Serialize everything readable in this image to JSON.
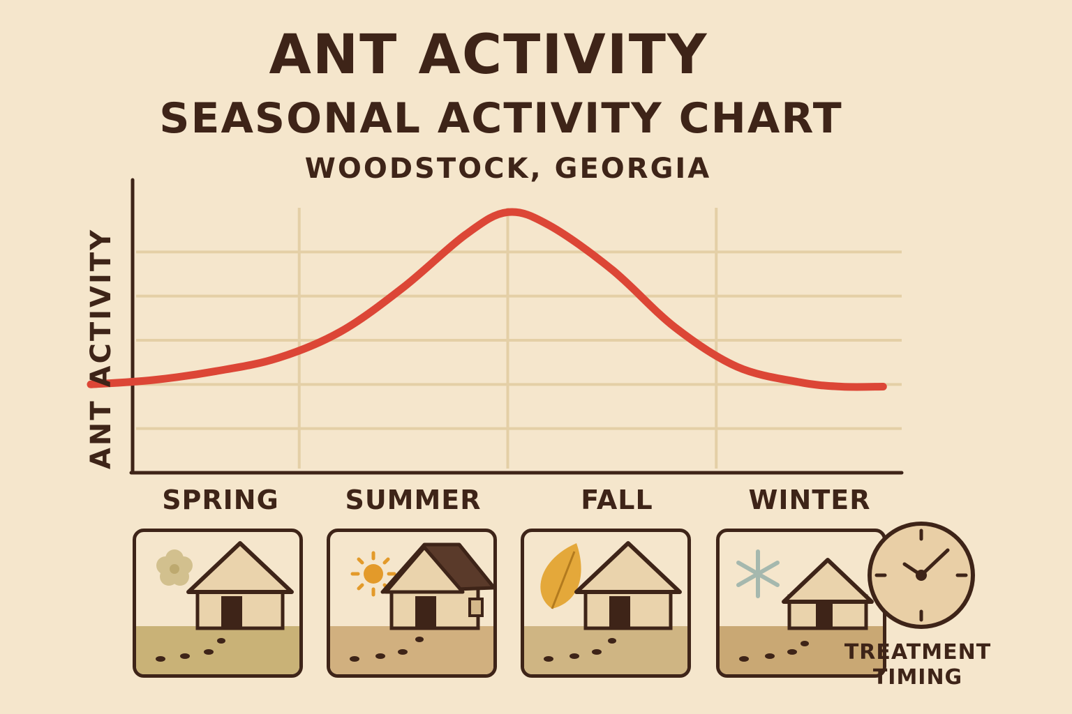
{
  "header": {
    "title": "ANT ACTIVITY",
    "subtitle": "SEASONAL ACTIVITY CHART",
    "location": "WOODSTOCK, GEORGIA"
  },
  "chart_data": {
    "type": "line",
    "title": "SEASONAL ACTIVITY CHART",
    "ylabel": "ANT ACTIVITY",
    "xlabel": "",
    "categories": [
      "SPRING",
      "SUMMER",
      "FALL",
      "WINTER"
    ],
    "xlim": [
      0,
      4
    ],
    "ylim": [
      0,
      6
    ],
    "grid": true,
    "series": [
      {
        "color": "#dc4636",
        "points": [
          [
            0.0,
            2.0
          ],
          [
            0.3,
            2.1
          ],
          [
            0.6,
            2.3
          ],
          [
            0.9,
            2.6
          ],
          [
            1.2,
            3.2
          ],
          [
            1.5,
            4.2
          ],
          [
            1.8,
            5.4
          ],
          [
            2.0,
            5.9
          ],
          [
            2.2,
            5.6
          ],
          [
            2.5,
            4.6
          ],
          [
            2.8,
            3.3
          ],
          [
            3.1,
            2.4
          ],
          [
            3.4,
            2.05
          ],
          [
            3.6,
            1.95
          ],
          [
            3.8,
            1.95
          ]
        ]
      }
    ]
  },
  "panels": [
    {
      "season": "SPRING",
      "icon": "flower-icon"
    },
    {
      "season": "SUMMER",
      "icon": "sun-icon"
    },
    {
      "season": "FALL",
      "icon": "leaf-icon"
    },
    {
      "season": "WINTER",
      "icon": "snowflake-icon"
    }
  ],
  "treatment": {
    "line1": "TREATMENT",
    "line2": "TIMING",
    "icon": "clock-icon"
  },
  "colors": {
    "background": "#f5e6cc",
    "ink": "#3e2418",
    "curve": "#dc4636",
    "grid": "#e4cfa6"
  }
}
